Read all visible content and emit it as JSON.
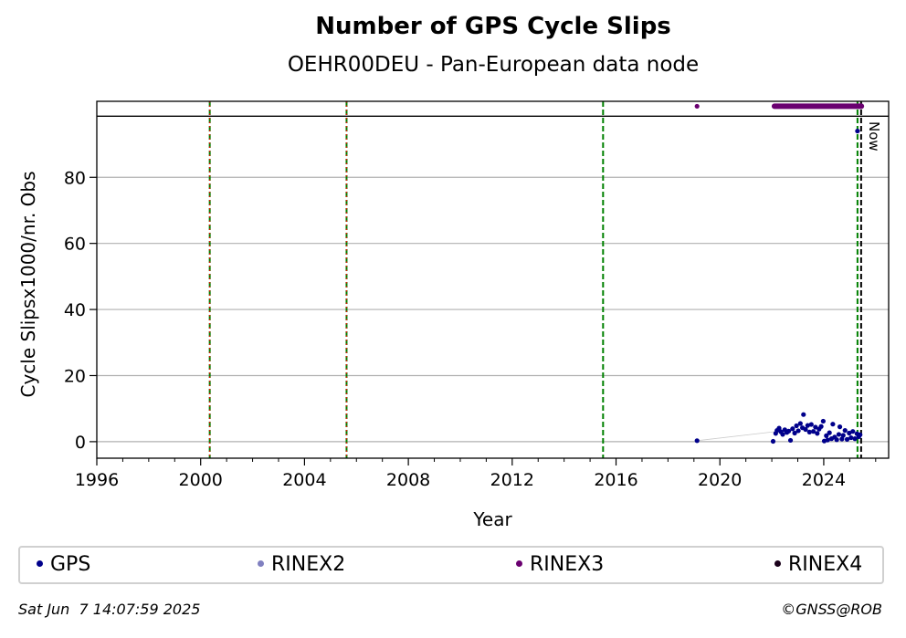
{
  "chart_data": {
    "type": "scatter",
    "title": "Number of GPS Cycle Slips",
    "subtitle": "OEHR00DEU - Pan-European data node",
    "xlabel": "Year",
    "ylabel": "Cycle Slipsx1000/nr. Obs",
    "xlim": [
      1996,
      2026.5
    ],
    "ylim": [
      -5,
      103
    ],
    "x_ticks": [
      1996,
      2000,
      2004,
      2008,
      2012,
      2016,
      2020,
      2024
    ],
    "y_ticks": [
      0,
      20,
      40,
      60,
      80
    ],
    "grid": "horizontal",
    "legend_position": "bottom",
    "upper_band_limit": 98.5,
    "vertical_lines": [
      {
        "x": 2000.35,
        "style": "green-dashed-red-dotted"
      },
      {
        "x": 2005.62,
        "style": "green-dashed-red-dotted"
      },
      {
        "x": 2015.5,
        "style": "green-dashed"
      },
      {
        "x": 2025.3,
        "style": "green-dashed"
      },
      {
        "x": 2025.44,
        "style": "black-dashed",
        "label": "Now"
      }
    ],
    "series": [
      {
        "name": "GPS",
        "color": "#00008b",
        "points": [
          [
            2019.12,
            0.3
          ],
          [
            2025.3,
            94
          ],
          [
            2022.05,
            0.1
          ],
          [
            2022.15,
            2.5
          ],
          [
            2022.2,
            3.4
          ],
          [
            2022.28,
            4.1
          ],
          [
            2022.35,
            3.0
          ],
          [
            2022.42,
            2.2
          ],
          [
            2022.5,
            3.6
          ],
          [
            2022.58,
            2.8
          ],
          [
            2022.65,
            3.2
          ],
          [
            2022.72,
            0.4
          ],
          [
            2022.8,
            3.9
          ],
          [
            2022.88,
            2.6
          ],
          [
            2022.95,
            4.8
          ],
          [
            2023.02,
            3.3
          ],
          [
            2023.1,
            5.5
          ],
          [
            2023.18,
            4.2
          ],
          [
            2023.22,
            8.2
          ],
          [
            2023.3,
            3.7
          ],
          [
            2023.38,
            4.9
          ],
          [
            2023.45,
            2.9
          ],
          [
            2023.52,
            5.2
          ],
          [
            2023.6,
            3.1
          ],
          [
            2023.68,
            4.4
          ],
          [
            2023.75,
            2.5
          ],
          [
            2023.82,
            3.8
          ],
          [
            2023.9,
            4.6
          ],
          [
            2023.98,
            6.2
          ],
          [
            2024.02,
            0.2
          ],
          [
            2024.1,
            1.8
          ],
          [
            2024.15,
            0.5
          ],
          [
            2024.22,
            2.7
          ],
          [
            2024.3,
            0.9
          ],
          [
            2024.35,
            5.3
          ],
          [
            2024.42,
            1.4
          ],
          [
            2024.5,
            0.6
          ],
          [
            2024.58,
            2.2
          ],
          [
            2024.62,
            4.5
          ],
          [
            2024.7,
            0.8
          ],
          [
            2024.75,
            1.9
          ],
          [
            2024.82,
            3.4
          ],
          [
            2024.9,
            0.7
          ],
          [
            2024.98,
            2.6
          ],
          [
            2025.05,
            1.2
          ],
          [
            2025.12,
            3.1
          ],
          [
            2025.2,
            0.9
          ],
          [
            2025.28,
            2.4
          ],
          [
            2025.35,
            1.5
          ],
          [
            2025.4,
            2.1
          ]
        ]
      },
      {
        "name": "RINEX2",
        "color": "#8080c0",
        "points": []
      },
      {
        "name": "RINEX3",
        "color": "#6a0070",
        "points": [
          [
            2019.12,
            101.5
          ]
        ],
        "range": {
          "from": 2022.1,
          "to": 2025.45,
          "y": 101.5
        }
      },
      {
        "name": "RINEX4",
        "color": "#1a001a",
        "points": []
      }
    ]
  },
  "legend": {
    "items": [
      {
        "label": "GPS",
        "color": "#00008b"
      },
      {
        "label": "RINEX2",
        "color": "#8080c0"
      },
      {
        "label": "RINEX3",
        "color": "#6a0070"
      },
      {
        "label": "RINEX4",
        "color": "#1a001a"
      }
    ]
  },
  "footer": {
    "timestamp": "Sat Jun  7 14:07:59 2025",
    "credit": "©GNSS@ROB"
  }
}
